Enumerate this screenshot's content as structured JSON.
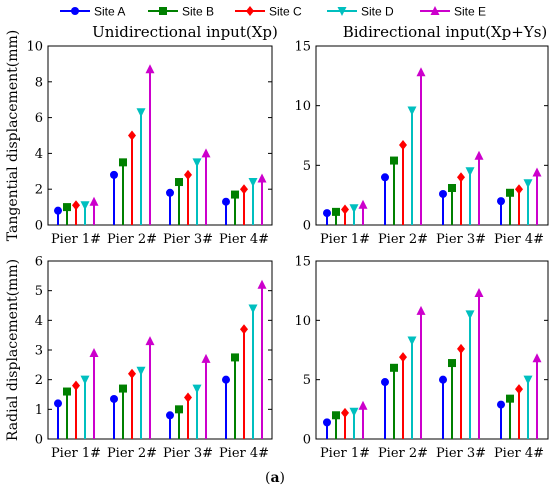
{
  "legend": [
    {
      "name": "Site A",
      "color": "#0000ff",
      "marker": "circle"
    },
    {
      "name": "Site B",
      "color": "#008000",
      "marker": "square"
    },
    {
      "name": "Site C",
      "color": "#ff0000",
      "marker": "diamond"
    },
    {
      "name": "Site D",
      "color": "#00bfbf",
      "marker": "triangle-down"
    },
    {
      "name": "Site E",
      "color": "#cc00cc",
      "marker": "triangle-up"
    }
  ],
  "caption_letter": "a",
  "chart_data": [
    {
      "type": "bar",
      "title": "Unidirectional input(Xp)",
      "ylabel": "Tangential displacement(mm)",
      "xlabel": "",
      "categories": [
        "Pier 1#",
        "Pier 2#",
        "Pier 3#",
        "Pier 4#"
      ],
      "ylim": [
        0,
        10
      ],
      "yticks": [
        0,
        2,
        4,
        6,
        8,
        10
      ],
      "series": [
        {
          "name": "Site A",
          "values": [
            0.8,
            2.8,
            1.8,
            1.3
          ]
        },
        {
          "name": "Site B",
          "values": [
            1.0,
            3.5,
            2.4,
            1.7
          ]
        },
        {
          "name": "Site C",
          "values": [
            1.1,
            5.0,
            2.8,
            2.0
          ]
        },
        {
          "name": "Site D",
          "values": [
            1.1,
            6.3,
            3.5,
            2.4
          ]
        },
        {
          "name": "Site E",
          "values": [
            1.3,
            8.7,
            4.0,
            2.6
          ]
        }
      ]
    },
    {
      "type": "bar",
      "title": "Bidirectional input(Xp+Ys)",
      "ylabel": "",
      "xlabel": "",
      "categories": [
        "Pier 1#",
        "Pier 2#",
        "Pier 3#",
        "Pier 4#"
      ],
      "ylim": [
        0,
        15
      ],
      "yticks": [
        0,
        5,
        10,
        15
      ],
      "series": [
        {
          "name": "Site A",
          "values": [
            1.0,
            4.0,
            2.6,
            2.0
          ]
        },
        {
          "name": "Site B",
          "values": [
            1.1,
            5.4,
            3.1,
            2.7
          ]
        },
        {
          "name": "Site C",
          "values": [
            1.3,
            6.7,
            4.0,
            3.0
          ]
        },
        {
          "name": "Site D",
          "values": [
            1.4,
            9.6,
            4.5,
            3.5
          ]
        },
        {
          "name": "Site E",
          "values": [
            1.7,
            12.8,
            5.8,
            4.4
          ]
        }
      ]
    },
    {
      "type": "bar",
      "title": "",
      "ylabel": "Radial displacement(mm)",
      "xlabel": "",
      "categories": [
        "Pier 1#",
        "Pier 2#",
        "Pier 3#",
        "Pier 4#"
      ],
      "ylim": [
        0,
        6
      ],
      "yticks": [
        0,
        1,
        2,
        3,
        4,
        5,
        6
      ],
      "series": [
        {
          "name": "Site A",
          "values": [
            1.2,
            1.35,
            0.8,
            2.0
          ]
        },
        {
          "name": "Site B",
          "values": [
            1.6,
            1.7,
            1.0,
            2.75
          ]
        },
        {
          "name": "Site C",
          "values": [
            1.8,
            2.2,
            1.4,
            3.7
          ]
        },
        {
          "name": "Site D",
          "values": [
            2.0,
            2.3,
            1.7,
            4.4
          ]
        },
        {
          "name": "Site E",
          "values": [
            2.9,
            3.3,
            2.7,
            5.2
          ]
        }
      ]
    },
    {
      "type": "bar",
      "title": "",
      "ylabel": "",
      "xlabel": "",
      "categories": [
        "Pier 1#",
        "Pier 2#",
        "Pier 3#",
        "Pier 4#"
      ],
      "ylim": [
        0,
        15
      ],
      "yticks": [
        0,
        5,
        10,
        15
      ],
      "series": [
        {
          "name": "Site A",
          "values": [
            1.4,
            4.8,
            5.0,
            2.9
          ]
        },
        {
          "name": "Site B",
          "values": [
            2.0,
            6.0,
            6.4,
            3.4
          ]
        },
        {
          "name": "Site C",
          "values": [
            2.2,
            6.9,
            7.6,
            4.2
          ]
        },
        {
          "name": "Site D",
          "values": [
            2.3,
            8.3,
            10.5,
            5.0
          ]
        },
        {
          "name": "Site E",
          "values": [
            2.8,
            10.8,
            12.3,
            6.8
          ]
        }
      ]
    }
  ]
}
